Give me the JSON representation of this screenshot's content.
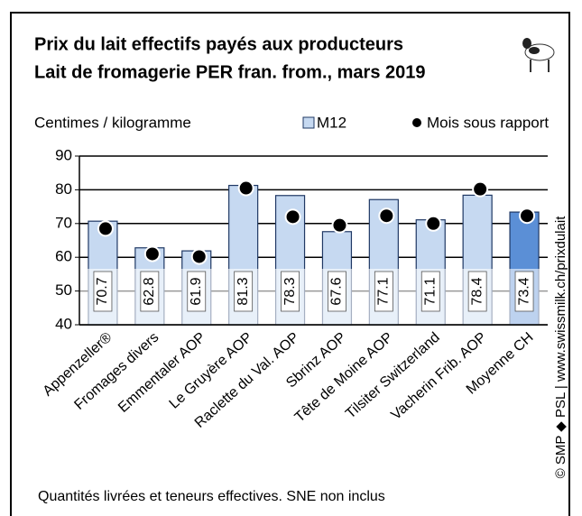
{
  "chart_data": {
    "type": "bar",
    "title": "Prix du lait effectifs payés aux producteurs",
    "subtitle": "Lait de fromagerie PER fran. from., mars 2019",
    "y_label": "Centimes / kilogramme",
    "categories": [
      "Appenzeller®",
      "Fromages divers",
      "Emmentaler AOP",
      "Le Gruyère AOP",
      "Raclette du Val. AOP",
      "Sbrinz AOP",
      "Tête de Moine AOP",
      "Tilsiter Switzerland",
      "Vacherin Frib. AOP",
      "Moyenne CH"
    ],
    "series": [
      {
        "name": "M12",
        "color": "#c6d9f1",
        "colors": [
          "#c6d9f1",
          "#c6d9f1",
          "#c6d9f1",
          "#c6d9f1",
          "#c6d9f1",
          "#c6d9f1",
          "#c6d9f1",
          "#c6d9f1",
          "#c6d9f1",
          "#5b8fd6"
        ],
        "values": [
          70.7,
          62.8,
          61.9,
          81.3,
          78.3,
          67.6,
          77.1,
          71.1,
          78.4,
          73.4
        ]
      },
      {
        "name": "Mois sous rapport",
        "color": "#000000",
        "values": [
          68.5,
          61.0,
          60.2,
          80.5,
          72.0,
          69.5,
          72.3,
          70.0,
          80.2,
          72.3
        ]
      }
    ],
    "ylim": [
      40,
      90
    ],
    "yticks": [
      40,
      50,
      60,
      70,
      80,
      90
    ],
    "grid": true,
    "note": "Quantités livrées et teneurs effectives. SNE non inclus",
    "source": "© SMP ◆ PSL | www.swissmilk.ch/prixdulait"
  }
}
